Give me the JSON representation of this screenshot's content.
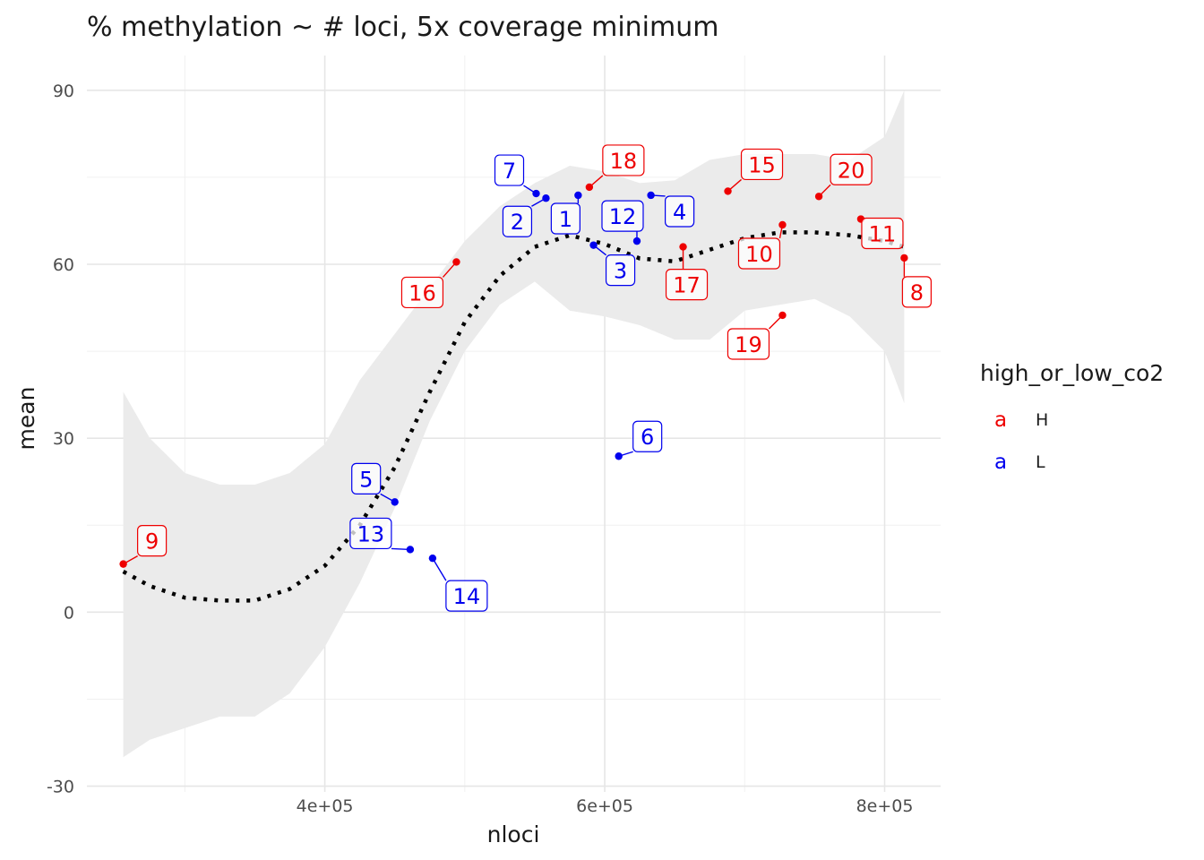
{
  "chart_data": {
    "type": "scatter",
    "title": "% methylation ~ # loci, 5x coverage minimum",
    "xlabel": "nloci",
    "ylabel": "mean",
    "xlim": [
      230000,
      840000
    ],
    "ylim": [
      -31,
      96
    ],
    "x_ticks": [
      400000,
      600000,
      800000
    ],
    "x_tick_labels": [
      "4e+05",
      "6e+05",
      "8e+05"
    ],
    "y_ticks": [
      -30,
      0,
      30,
      60,
      90
    ],
    "y_tick_labels": [
      "-30",
      "0",
      "30",
      "60",
      "90"
    ],
    "grid": true,
    "legend": {
      "title": "high_or_low_co2",
      "position": "right",
      "key_glyph": "a",
      "entries": [
        {
          "name": "H",
          "color": "#ee0000"
        },
        {
          "name": "L",
          "color": "#0000ee"
        }
      ]
    },
    "series": [
      {
        "name": "H",
        "color": "#ee0000",
        "points": [
          {
            "label": "9",
            "x": 256000,
            "y": 8.3
          },
          {
            "label": "16",
            "x": 494000,
            "y": 60.4
          },
          {
            "label": "18",
            "x": 589000,
            "y": 73.3
          },
          {
            "label": "17",
            "x": 656000,
            "y": 63.0
          },
          {
            "label": "15",
            "x": 688000,
            "y": 72.6
          },
          {
            "label": "10",
            "x": 727000,
            "y": 66.8
          },
          {
            "label": "19",
            "x": 727000,
            "y": 51.2
          },
          {
            "label": "20",
            "x": 753000,
            "y": 71.7
          },
          {
            "label": "11",
            "x": 783000,
            "y": 67.8
          },
          {
            "label": "8",
            "x": 814000,
            "y": 61.1
          }
        ]
      },
      {
        "name": "L",
        "color": "#0000ee",
        "points": [
          {
            "label": "5",
            "x": 450000,
            "y": 19.0
          },
          {
            "label": "13",
            "x": 461000,
            "y": 10.8
          },
          {
            "label": "14",
            "x": 477000,
            "y": 9.3
          },
          {
            "label": "7",
            "x": 551000,
            "y": 72.2
          },
          {
            "label": "2",
            "x": 558000,
            "y": 71.4
          },
          {
            "label": "1",
            "x": 581000,
            "y": 71.9
          },
          {
            "label": "3",
            "x": 592000,
            "y": 63.3
          },
          {
            "label": "6",
            "x": 610000,
            "y": 26.9
          },
          {
            "label": "12",
            "x": 623000,
            "y": 64.0
          },
          {
            "label": "4",
            "x": 633000,
            "y": 71.9
          }
        ]
      }
    ],
    "smooth": {
      "method": "loess",
      "line_style": "dotted",
      "line_color": "#000000",
      "ribbon_color": "#ebebeb",
      "x": [
        256000,
        275000,
        300000,
        325000,
        350000,
        375000,
        400000,
        425000,
        450000,
        475000,
        500000,
        525000,
        550000,
        575000,
        600000,
        625000,
        650000,
        675000,
        700000,
        725000,
        750000,
        775000,
        800000,
        814000
      ],
      "fit": [
        7,
        4.5,
        2.5,
        2,
        2,
        4,
        8,
        15,
        25,
        38,
        50,
        58,
        63,
        65,
        63.5,
        61,
        60.5,
        62.5,
        64.5,
        65.5,
        65.5,
        65,
        64,
        63
      ],
      "lower": [
        -25,
        -22,
        -20,
        -18,
        -18,
        -14,
        -6,
        5,
        18,
        33,
        45,
        53,
        57,
        52,
        51,
        49.5,
        47,
        47,
        52,
        53,
        54,
        51,
        45,
        36
      ],
      "upper": [
        38,
        30,
        24,
        22,
        22,
        24,
        29,
        40,
        48,
        56,
        64,
        70,
        74,
        77,
        76,
        74,
        74.5,
        78,
        79,
        79,
        79,
        78,
        82,
        90
      ]
    }
  }
}
